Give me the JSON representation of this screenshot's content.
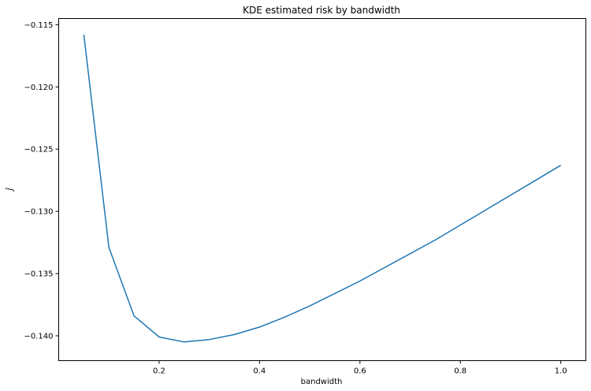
{
  "chart_data": {
    "type": "line",
    "title": "KDE estimated risk by bandwidth",
    "xlabel": "bandwidth",
    "ylabel": "Ĵ",
    "xlim": [
      0.0,
      1.05
    ],
    "ylim": [
      -0.142,
      -0.1145
    ],
    "xticks": [
      0.2,
      0.4,
      0.6,
      0.8,
      1.0
    ],
    "xtick_labels": [
      "0.2",
      "0.4",
      "0.6",
      "0.8",
      "1.0"
    ],
    "yticks": [
      -0.115,
      -0.12,
      -0.125,
      -0.13,
      -0.135,
      -0.14
    ],
    "ytick_labels": [
      "−0.115",
      "−0.120",
      "−0.125",
      "−0.130",
      "−0.135",
      "−0.140"
    ],
    "grid": false,
    "line_color": "#1f77b4",
    "series": [
      {
        "x": [
          0.05,
          0.1,
          0.15,
          0.2,
          0.25,
          0.3,
          0.35,
          0.4,
          0.45,
          0.5,
          0.55,
          0.6,
          0.65,
          0.7,
          0.75,
          0.8,
          0.85,
          0.9,
          0.95,
          1.0
        ],
        "values": [
          -0.1158,
          -0.1329,
          -0.1384,
          -0.1401,
          -0.1405,
          -0.1403,
          -0.1399,
          -0.1393,
          -0.1385,
          -0.1376,
          -0.1366,
          -0.1356,
          -0.1345,
          -0.1334,
          -0.1323,
          -0.1311,
          -0.1299,
          -0.1287,
          -0.1275,
          -0.1263
        ]
      }
    ]
  }
}
